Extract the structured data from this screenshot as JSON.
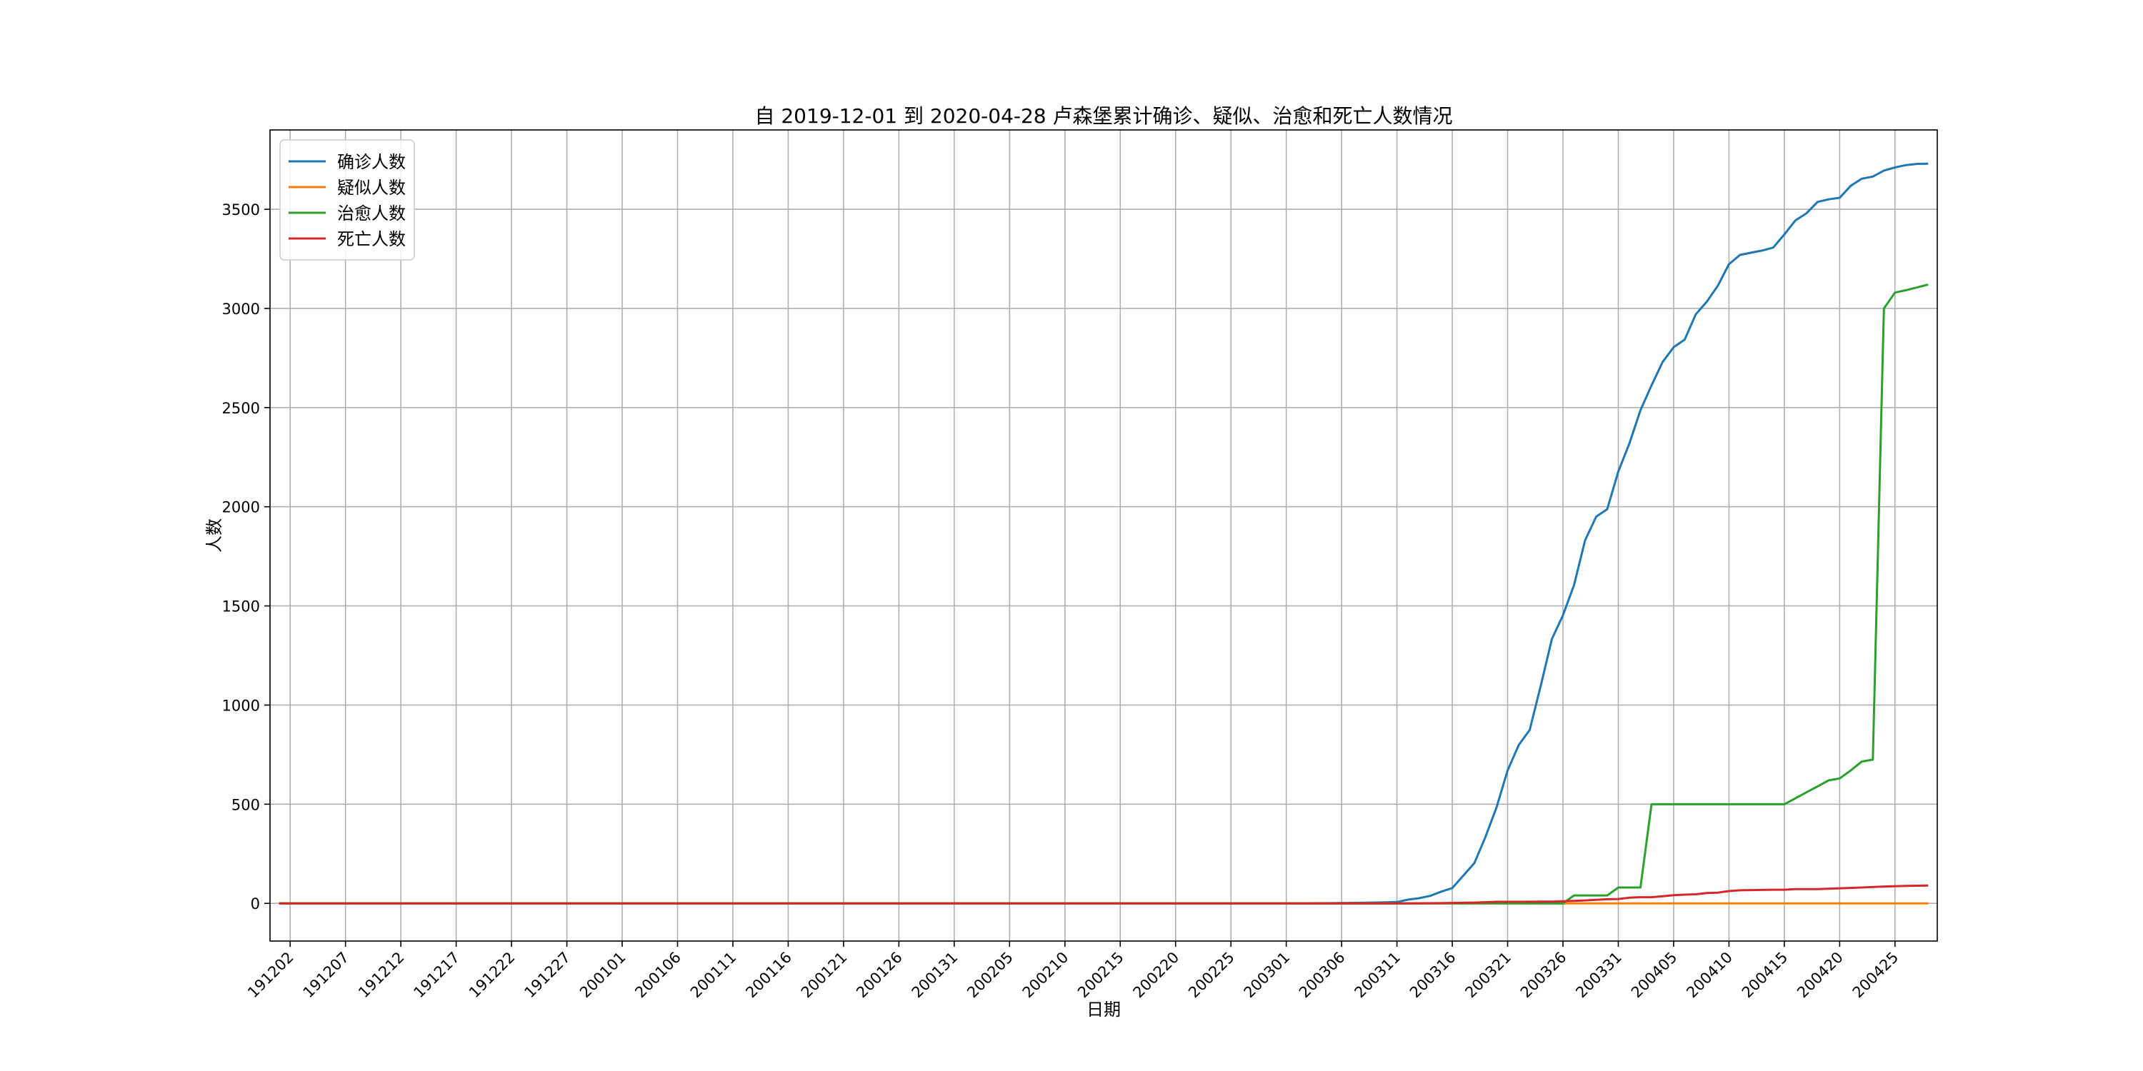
{
  "chart_data": {
    "type": "line",
    "title": "自 2019-12-01 到 2020-04-28 卢森堡累计确诊、疑似、治愈和死亡人数情况",
    "xlabel": "日期",
    "ylabel": "人数",
    "x_start": "191201",
    "x_end": "200428",
    "ylim": [
      -190,
      3900
    ],
    "yticks": [
      0,
      500,
      1000,
      1500,
      2000,
      2500,
      3000,
      3500
    ],
    "xticks": [
      "191202",
      "191207",
      "191212",
      "191217",
      "191222",
      "191227",
      "200101",
      "200106",
      "200111",
      "200116",
      "200121",
      "200126",
      "200131",
      "200205",
      "200210",
      "200215",
      "200220",
      "200225",
      "200301",
      "200306",
      "200311",
      "200316",
      "200321",
      "200326",
      "200331",
      "200405",
      "200410",
      "200415",
      "200420",
      "200425"
    ],
    "grid": true,
    "legend_position": "top-left",
    "series": [
      {
        "name": "确诊人数",
        "color": "#1f77b4",
        "points": [
          [
            "191201",
            0
          ],
          [
            "200229",
            0
          ],
          [
            "200305",
            1
          ],
          [
            "200308",
            3
          ],
          [
            "200310",
            5
          ],
          [
            "200311",
            7
          ],
          [
            "200312",
            19
          ],
          [
            "200313",
            26
          ],
          [
            "200314",
            38
          ],
          [
            "200315",
            59
          ],
          [
            "200316",
            77
          ],
          [
            "200317",
            140
          ],
          [
            "200318",
            203
          ],
          [
            "200319",
            335
          ],
          [
            "200320",
            484
          ],
          [
            "200321",
            670
          ],
          [
            "200322",
            798
          ],
          [
            "200323",
            875
          ],
          [
            "200324",
            1099
          ],
          [
            "200325",
            1333
          ],
          [
            "200326",
            1453
          ],
          [
            "200327",
            1605
          ],
          [
            "200328",
            1831
          ],
          [
            "200329",
            1950
          ],
          [
            "200330",
            1988
          ],
          [
            "200331",
            2178
          ],
          [
            "200401",
            2319
          ],
          [
            "200402",
            2487
          ],
          [
            "200403",
            2612
          ],
          [
            "200404",
            2729
          ],
          [
            "200405",
            2804
          ],
          [
            "200406",
            2843
          ],
          [
            "200407",
            2970
          ],
          [
            "200408",
            3034
          ],
          [
            "200409",
            3115
          ],
          [
            "200410",
            3223
          ],
          [
            "200411",
            3270
          ],
          [
            "200412",
            3281
          ],
          [
            "200413",
            3292
          ],
          [
            "200414",
            3307
          ],
          [
            "200415",
            3373
          ],
          [
            "200416",
            3444
          ],
          [
            "200417",
            3480
          ],
          [
            "200418",
            3537
          ],
          [
            "200419",
            3550
          ],
          [
            "200420",
            3558
          ],
          [
            "200421",
            3618
          ],
          [
            "200422",
            3654
          ],
          [
            "200423",
            3665
          ],
          [
            "200424",
            3695
          ],
          [
            "200425",
            3711
          ],
          [
            "200426",
            3723
          ],
          [
            "200427",
            3729
          ],
          [
            "200428",
            3730
          ]
        ]
      },
      {
        "name": "疑似人数",
        "color": "#ff7f0e",
        "points": [
          [
            "191201",
            0
          ],
          [
            "200428",
            0
          ]
        ]
      },
      {
        "name": "治愈人数",
        "color": "#2ca02c",
        "points": [
          [
            "191201",
            0
          ],
          [
            "200326",
            0
          ],
          [
            "200327",
            40
          ],
          [
            "200330",
            40
          ],
          [
            "200331",
            80
          ],
          [
            "200402",
            80
          ],
          [
            "200403",
            500
          ],
          [
            "200414",
            500
          ],
          [
            "200415",
            500
          ],
          [
            "200417",
            560
          ],
          [
            "200418",
            590
          ],
          [
            "200419",
            620
          ],
          [
            "200420",
            630
          ],
          [
            "200421",
            670
          ],
          [
            "200422",
            715
          ],
          [
            "200423",
            725
          ],
          [
            "200424",
            3000
          ],
          [
            "200425",
            3080
          ],
          [
            "200426",
            3092
          ],
          [
            "200428",
            3120
          ]
        ]
      },
      {
        "name": "死亡人数",
        "color": "#d62728",
        "points": [
          [
            "191201",
            0
          ],
          [
            "200312",
            0
          ],
          [
            "200315",
            1
          ],
          [
            "200318",
            4
          ],
          [
            "200320",
            8
          ],
          [
            "200322",
            8
          ],
          [
            "200325",
            9
          ],
          [
            "200328",
            15
          ],
          [
            "200330",
            21
          ],
          [
            "200331",
            22
          ],
          [
            "200401",
            29
          ],
          [
            "200402",
            31
          ],
          [
            "200403",
            31
          ],
          [
            "200404",
            36
          ],
          [
            "200405",
            41
          ],
          [
            "200406",
            44
          ],
          [
            "200407",
            46
          ],
          [
            "200408",
            52
          ],
          [
            "200409",
            54
          ],
          [
            "200410",
            62
          ],
          [
            "200411",
            66
          ],
          [
            "200412",
            67
          ],
          [
            "200414",
            69
          ],
          [
            "200415",
            69
          ],
          [
            "200416",
            72
          ],
          [
            "200418",
            72
          ],
          [
            "200420",
            76
          ],
          [
            "200422",
            80
          ],
          [
            "200424",
            85
          ],
          [
            "200426",
            88
          ],
          [
            "200428",
            90
          ]
        ]
      }
    ]
  }
}
